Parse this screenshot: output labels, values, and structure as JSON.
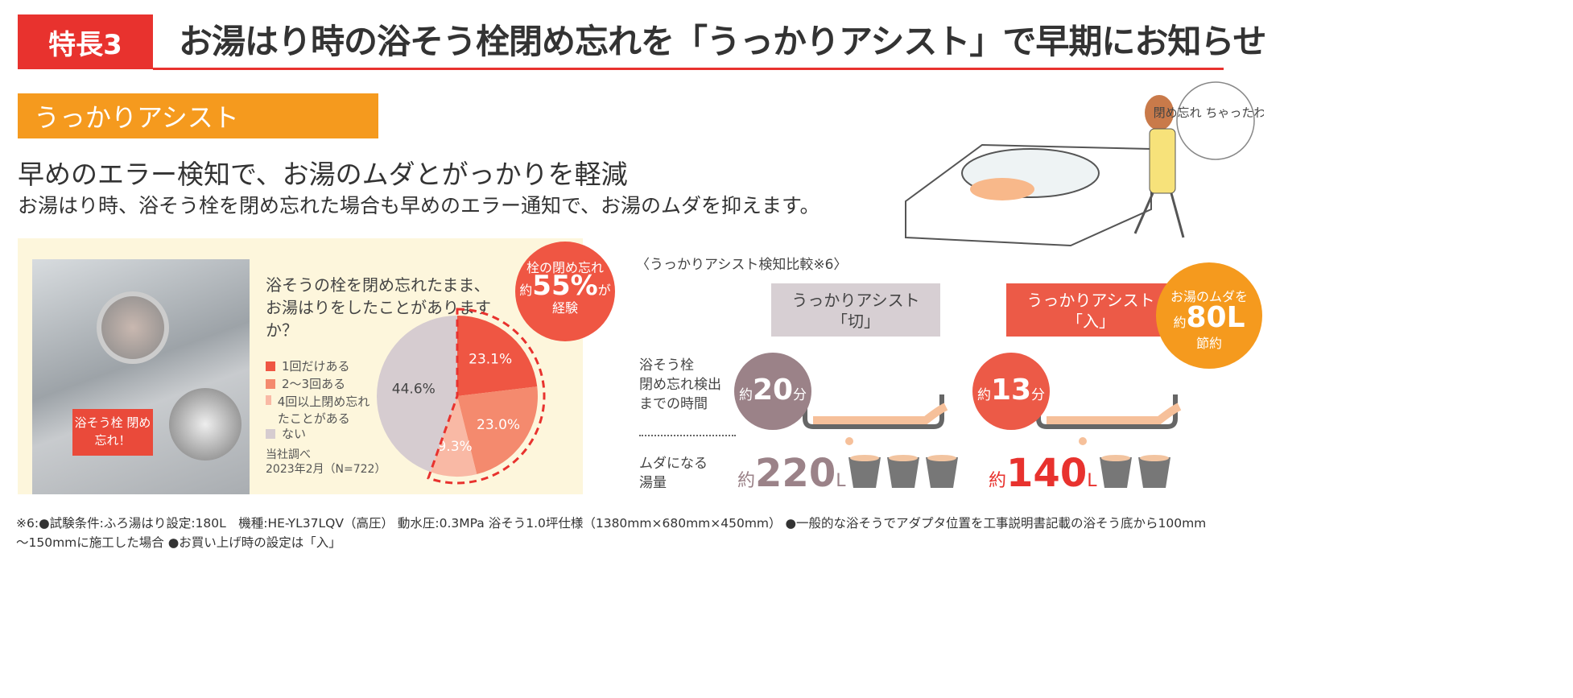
{
  "header": {
    "badge": "特長3",
    "title": "お湯はり時の浴そう栓閉め忘れを「うっかりアシスト」で早期にお知らせ"
  },
  "section": {
    "label": "うっかりアシスト",
    "headline": "早めのエラー検知で、お湯のムダとがっかりを軽減",
    "description": "お湯はり時、浴そう栓を閉め忘れた場合も早めのエラー通知で、お湯のムダを抑えます。"
  },
  "illustration": {
    "speech": "閉め忘れ ちゃったわ！"
  },
  "photo": {
    "tag": "浴そう栓 閉め忘れ！"
  },
  "survey": {
    "question": "浴そうの栓を閉め忘れたまま、お湯はりをしたことがありますか？",
    "source_1": "当社調べ",
    "source_2": "2023年2月（N=722）",
    "burst": {
      "line1": "栓の閉め忘れ",
      "prefix": "約",
      "value": "55%",
      "suffix": "が",
      "line3": "経験"
    }
  },
  "chart_data": {
    "type": "pie",
    "categories": [
      "1回だけある",
      "2〜3回ある",
      "4回以上閉め忘れたことがある",
      "ない"
    ],
    "values": [
      23.1,
      23.0,
      9.3,
      44.6
    ],
    "labels": [
      "23.1%",
      "23.0%",
      "9.3%",
      "44.6%"
    ],
    "colors": [
      "#ef5643",
      "#f48a6e",
      "#f9b9a5",
      "#d6ccd0"
    ]
  },
  "comparison": {
    "title": "〈うっかりアシスト検知比較※6〉",
    "off": {
      "line1": "うっかりアシスト",
      "line2": "「切」",
      "time_prefix": "約",
      "time": "20",
      "time_unit": "分",
      "amt_prefix": "約",
      "amount": "220",
      "amt_unit": "L",
      "color": "#9b8288"
    },
    "on": {
      "line1": "うっかりアシスト",
      "line2": "「入」",
      "time_prefix": "約",
      "time": "13",
      "time_unit": "分",
      "amt_prefix": "約",
      "amount": "140",
      "amt_unit": "L",
      "color": "#ec5a47"
    },
    "saving": {
      "line1": "お湯のムダを",
      "prefix": "約",
      "value": "80L",
      "line3": "節約"
    },
    "row1": [
      "浴そう栓",
      "閉め忘れ検出",
      "までの時間"
    ],
    "row2": [
      "ムダになる",
      "湯量"
    ]
  },
  "footnote": {
    "line1": "※6:●試験条件:ふろ湯はり設定:180L　機種:HE-YL37LQV（高圧） 動水圧:0.3MPa 浴そう1.0坪仕様（1380mm×680mm×450mm） ●一般的な浴そうでアダプタ位置を工事説明書記載の浴そう底から100mm",
    "line2": "〜150mmに施工した場合 ●お買い上げ時の設定は「入」"
  }
}
